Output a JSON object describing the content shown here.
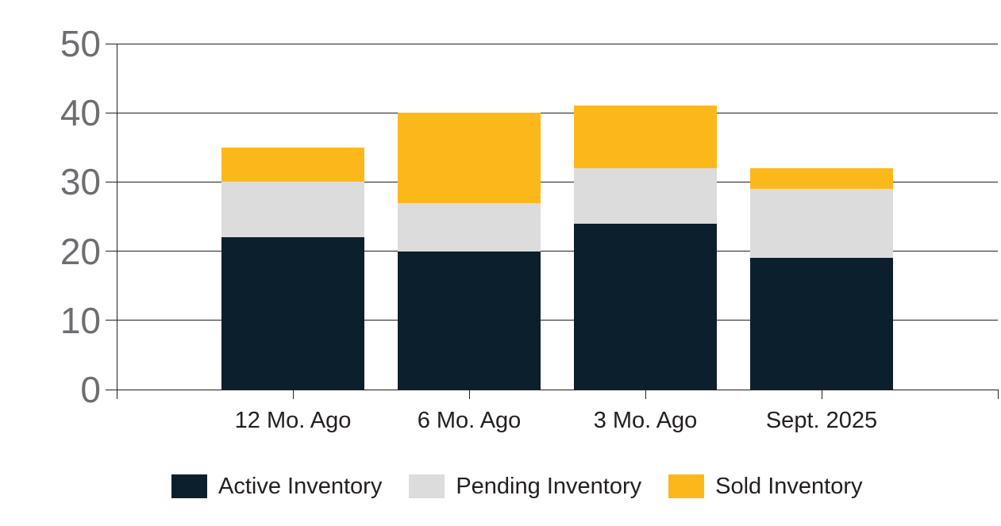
{
  "chart_data": {
    "type": "bar",
    "stacked": true,
    "title": "",
    "xlabel": "",
    "ylabel": "",
    "categories": [
      "12 Mo. Ago",
      "6 Mo. Ago",
      "3 Mo. Ago",
      "Sept. 2025"
    ],
    "series": [
      {
        "name": "Active Inventory",
        "color": "#0c1f2c",
        "values": [
          22,
          20,
          24,
          19
        ]
      },
      {
        "name": "Pending Inventory",
        "color": "#dcdcdc",
        "values": [
          8,
          7,
          8,
          10
        ]
      },
      {
        "name": "Sold Inventory",
        "color": "#fcb81b",
        "values": [
          5,
          13,
          9,
          3
        ]
      }
    ],
    "totals": [
      35,
      40,
      41,
      32
    ],
    "ylim": [
      0,
      50
    ],
    "yticks": [
      0,
      10,
      20,
      30,
      40,
      50
    ],
    "grid": true,
    "legend_position": "bottom"
  },
  "colors": {
    "axis_tick_text": "#6d6e71",
    "category_text": "#231f20",
    "gridline": "#231f20",
    "background": "#ffffff"
  }
}
